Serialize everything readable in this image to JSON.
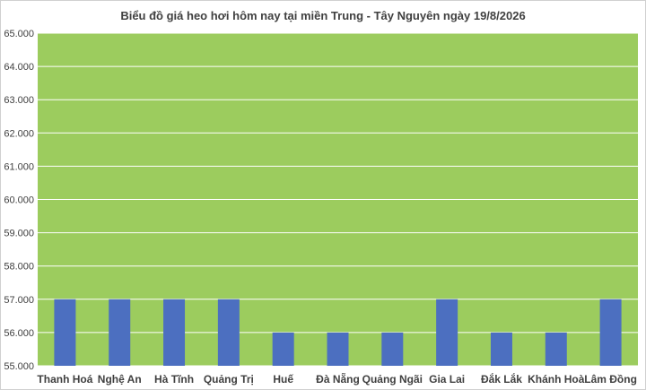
{
  "chart_data": {
    "type": "bar",
    "title": "Biểu đồ giá heo hơi hôm nay tại miền Trung - Tây Nguyên ngày 19/8/2026",
    "xlabel": "",
    "ylabel": "",
    "categories": [
      "Thanh Hoá",
      "Nghệ An",
      "Hà Tĩnh",
      "Quảng Trị",
      "Huế",
      "Đà Nẵng",
      "Quảng Ngãi",
      "Gia Lai",
      "Đắk Lắk",
      "Khánh Hoà",
      "Lâm Đồng"
    ],
    "values": [
      57000,
      57000,
      57000,
      57000,
      56000,
      56000,
      56000,
      57000,
      56000,
      56000,
      57000
    ],
    "ylim": [
      55000,
      65000
    ],
    "yticks": [
      "55.000",
      "56.000",
      "57.000",
      "58.000",
      "59.000",
      "60.000",
      "61.000",
      "62.000",
      "63.000",
      "64.000",
      "65.000"
    ],
    "grid": true,
    "legend": "none",
    "colors": {
      "plot_background": "#9ccc5e",
      "bar": "#4c6fc0",
      "gridline": "#ffffff"
    }
  }
}
